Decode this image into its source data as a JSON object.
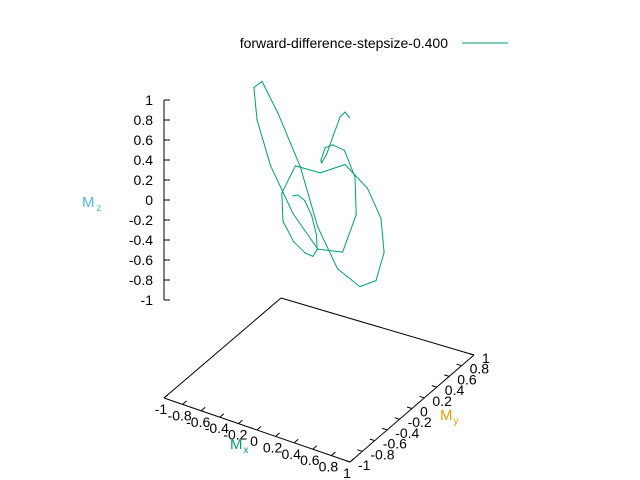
{
  "chart_data": {
    "type": "line",
    "dimension": "3d",
    "series": [
      {
        "name": "forward-difference-stepsize-0.400",
        "color": "#009e73",
        "x": [
          0.12,
          0.24,
          0.34,
          0.4,
          0.4,
          0.34,
          0.24,
          0.12,
          -0.02,
          -0.16,
          -0.24,
          -0.2,
          0.0,
          0.24,
          0.48,
          0.64,
          0.7,
          0.64,
          0.48,
          0.24,
          0.0,
          -0.24,
          -0.48,
          -0.64,
          -0.7,
          -0.64,
          -0.48,
          -0.24,
          0.0,
          0.2,
          0.24,
          0.16,
          0.02,
          -0.12,
          -0.24,
          -0.34,
          -0.4,
          -0.4,
          -0.34,
          -0.24,
          -0.12,
          -0.02
        ],
        "y": [
          -0.6,
          -0.7,
          -0.74,
          -0.72,
          -0.64,
          -0.54,
          -0.46,
          -0.4,
          -0.38,
          -0.34,
          -0.24,
          -0.08,
          0.02,
          0.06,
          0.06,
          0.04,
          0.0,
          -0.04,
          -0.06,
          -0.06,
          -0.02,
          0.06,
          0.06,
          0.04,
          0.0,
          -0.04,
          -0.06,
          -0.06,
          -0.02,
          0.08,
          0.24,
          0.34,
          0.38,
          0.4,
          0.46,
          0.54,
          0.64,
          0.72,
          0.74,
          0.7,
          0.6,
          0.52
        ],
        "z": [
          0.4,
          0.5,
          0.5,
          0.36,
          0.12,
          -0.1,
          -0.24,
          -0.28,
          -0.22,
          -0.08,
          0.12,
          0.32,
          0.26,
          0.4,
          0.24,
          0.0,
          -0.3,
          -0.58,
          -0.68,
          -0.58,
          -0.26,
          0.22,
          0.68,
          0.96,
          0.9,
          0.62,
          0.22,
          -0.18,
          -0.48,
          -0.5,
          -0.2,
          0.1,
          0.3,
          0.3,
          0.2,
          0.0,
          -0.1,
          -0.06,
          0.14,
          0.38,
          0.52,
          0.54
        ]
      }
    ],
    "xlabel": "M",
    "xlabel_sub": "x",
    "ylabel": "M",
    "ylabel_sub": "y",
    "zlabel": "M",
    "zlabel_sub": "z",
    "xlim": [
      -1,
      1
    ],
    "ylim": [
      -1,
      1
    ],
    "zlim": [
      -1,
      1
    ],
    "xticks": [
      "-1",
      "-0.8",
      "-0.6",
      "-0.4",
      "-0.2",
      "0",
      "0.2",
      "0.4",
      "0.6",
      "0.8",
      "1"
    ],
    "yticks": [
      "-1",
      "-0.8",
      "-0.6",
      "-0.4",
      "-0.2",
      "0",
      "0.2",
      "0.4",
      "0.6",
      "0.8",
      "1"
    ],
    "zticks": [
      "1",
      "0.8",
      "0.6",
      "0.4",
      "0.2",
      "0",
      "-0.2",
      "-0.4",
      "-0.6",
      "-0.8",
      "-1"
    ],
    "legend_position": "top-right",
    "axis_label_colors": {
      "x": "#009e73",
      "y": "#e69f00",
      "z": "#56b4e9"
    },
    "grid": false
  }
}
